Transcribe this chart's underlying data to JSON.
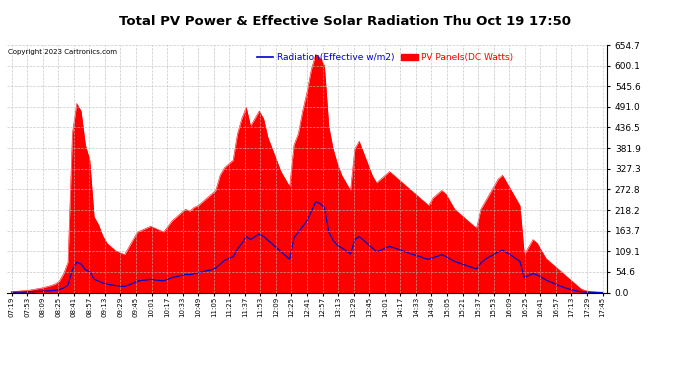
{
  "title": "Total PV Power & Effective Solar Radiation Thu Oct 19 17:50",
  "copyright": "Copyright 2023 Cartronics.com",
  "legend_radiation": "Radiation(Effective w/m2)",
  "legend_pv": "PV Panels(DC Watts)",
  "yticks": [
    0.0,
    54.6,
    109.1,
    163.7,
    218.2,
    272.8,
    327.3,
    381.9,
    436.5,
    491.0,
    545.6,
    600.1,
    654.7
  ],
  "ymax": 654.7,
  "ymin": 0.0,
  "bg_color": "#ffffff",
  "plot_bg_color": "#ffffff",
  "grid_color": "#bbbbbb",
  "radiation_color": "#ff0000",
  "pv_line_color": "#0000cc",
  "title_color": "#000000",
  "copyright_color": "#000000",
  "xtick_labels": [
    "07:19",
    "07:53",
    "08:09",
    "08:25",
    "08:41",
    "08:57",
    "09:13",
    "09:29",
    "09:45",
    "10:01",
    "10:17",
    "10:33",
    "10:49",
    "11:05",
    "11:21",
    "11:37",
    "11:53",
    "12:09",
    "12:25",
    "12:41",
    "12:57",
    "13:13",
    "13:29",
    "13:45",
    "14:01",
    "14:17",
    "14:33",
    "14:49",
    "15:05",
    "15:21",
    "15:37",
    "15:53",
    "16:09",
    "16:25",
    "16:41",
    "16:57",
    "17:13",
    "17:29",
    "17:45"
  ],
  "radiation_values": [
    2,
    3,
    4,
    5,
    6,
    8,
    10,
    12,
    15,
    18,
    22,
    30,
    50,
    80,
    420,
    500,
    480,
    390,
    350,
    200,
    180,
    150,
    130,
    120,
    110,
    105,
    100,
    120,
    140,
    160,
    165,
    170,
    175,
    170,
    165,
    160,
    175,
    190,
    200,
    210,
    220,
    215,
    225,
    230,
    240,
    250,
    260,
    270,
    310,
    330,
    340,
    350,
    420,
    460,
    490,
    440,
    460,
    480,
    460,
    410,
    380,
    350,
    320,
    300,
    280,
    390,
    420,
    480,
    530,
    590,
    630,
    620,
    600,
    440,
    380,
    340,
    310,
    290,
    270,
    380,
    400,
    370,
    340,
    310,
    290,
    300,
    310,
    320,
    310,
    300,
    290,
    280,
    270,
    260,
    250,
    240,
    230,
    250,
    260,
    270,
    260,
    240,
    220,
    210,
    200,
    190,
    180,
    170,
    220,
    240,
    260,
    280,
    300,
    310,
    290,
    270,
    250,
    230,
    100,
    120,
    140,
    130,
    110,
    90,
    80,
    70,
    60,
    50,
    40,
    30,
    20,
    10,
    5,
    3,
    2,
    1,
    0
  ],
  "pv_values": [
    1,
    1,
    1,
    1,
    2,
    2,
    3,
    3,
    4,
    5,
    6,
    8,
    12,
    20,
    60,
    80,
    75,
    60,
    55,
    35,
    30,
    25,
    22,
    20,
    18,
    17,
    16,
    20,
    25,
    30,
    32,
    33,
    35,
    33,
    32,
    31,
    35,
    40,
    42,
    45,
    48,
    47,
    50,
    52,
    55,
    58,
    60,
    65,
    75,
    85,
    90,
    95,
    115,
    130,
    148,
    140,
    148,
    155,
    148,
    138,
    128,
    118,
    108,
    98,
    88,
    145,
    160,
    175,
    190,
    215,
    240,
    235,
    225,
    160,
    138,
    125,
    118,
    110,
    102,
    140,
    148,
    138,
    128,
    118,
    108,
    112,
    118,
    122,
    118,
    114,
    110,
    106,
    102,
    98,
    95,
    90,
    88,
    92,
    96,
    100,
    95,
    88,
    82,
    78,
    74,
    70,
    66,
    62,
    78,
    88,
    95,
    100,
    108,
    112,
    105,
    98,
    90,
    82,
    40,
    45,
    50,
    46,
    40,
    33,
    28,
    23,
    18,
    14,
    10,
    7,
    4,
    2,
    1,
    1,
    0,
    0,
    0
  ]
}
